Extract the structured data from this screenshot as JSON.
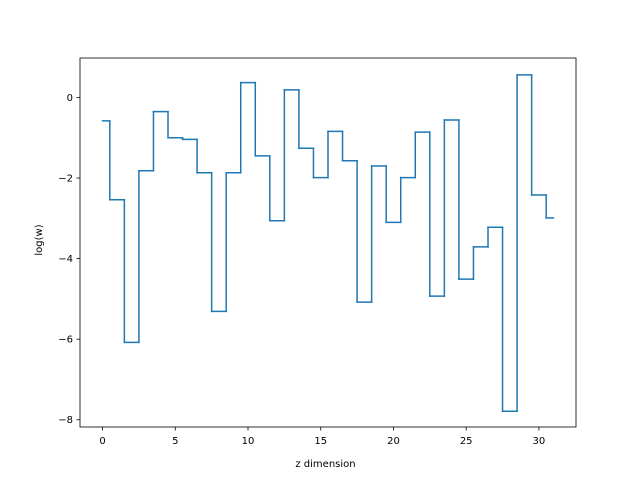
{
  "chart_data": {
    "type": "line",
    "drawstyle": "steps-mid",
    "title": "",
    "xlabel": "z dimension",
    "ylabel": "log(w)",
    "xlim": [
      -1.55,
      32.55
    ],
    "ylim": [
      -8.18,
      0.98
    ],
    "xticks": [
      0,
      5,
      10,
      15,
      20,
      25,
      30
    ],
    "yticks": [
      0,
      -2,
      -4,
      -6,
      -8
    ],
    "xtick_labels": [
      "0",
      "5",
      "10",
      "15",
      "20",
      "25",
      "30"
    ],
    "ytick_labels": [
      "0",
      "−2",
      "−4",
      "−6",
      "−8"
    ],
    "grid": false,
    "legend": "none",
    "series": [
      {
        "color": "#1f77b4",
        "x": [
          0,
          1,
          2,
          3,
          4,
          5,
          6,
          7,
          8,
          9,
          10,
          11,
          12,
          13,
          14,
          15,
          16,
          17,
          18,
          19,
          20,
          21,
          22,
          23,
          24,
          25,
          26,
          27,
          28,
          29,
          30,
          31
        ],
        "y": [
          -0.58,
          -2.54,
          -6.08,
          -1.82,
          -0.35,
          -1.0,
          -1.04,
          -1.87,
          -5.31,
          -1.87,
          0.37,
          -1.45,
          -3.06,
          0.19,
          -1.26,
          -1.99,
          -0.84,
          -1.57,
          -5.08,
          -1.7,
          -3.1,
          -1.99,
          -0.86,
          -4.93,
          -0.56,
          -4.51,
          -3.71,
          -3.22,
          -7.79,
          0.56,
          -2.42,
          -2.99
        ]
      }
    ]
  }
}
